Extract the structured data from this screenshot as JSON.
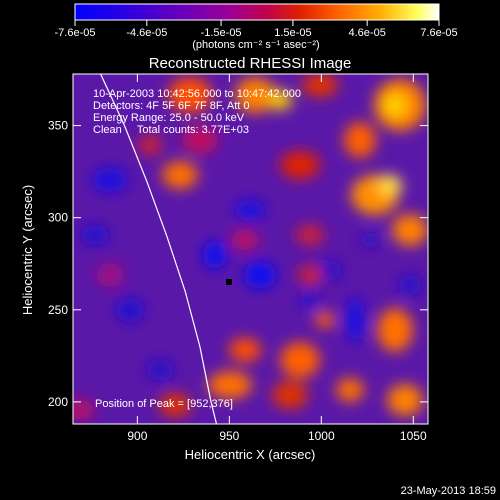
{
  "colorbar": {
    "tick_labels": [
      "-7.6e-05",
      "-4.6e-05",
      "-1.5e-05",
      "1.5e-05",
      "4.6e-05",
      "7.6e-05"
    ],
    "tick_values": [
      -7.6e-05,
      -4.6e-05,
      -1.5e-05,
      1.5e-05,
      4.6e-05,
      7.6e-05
    ],
    "range": [
      -7.6e-05,
      7.6e-05
    ],
    "unit_label": "(photons cm⁻² s⁻¹ asec⁻²)",
    "colormap": [
      "#0000ff",
      "#5000c8",
      "#9000a0",
      "#d00040",
      "#ff4000",
      "#ffa000",
      "#ffff80",
      "#ffffff"
    ]
  },
  "chart_data": {
    "type": "heatmap",
    "title": "Reconstructed RHESSI Image",
    "xlabel": "Heliocentric X (arcsec)",
    "ylabel": "Heliocentric Y (arcsec)",
    "xlim": [
      865,
      1058
    ],
    "ylim": [
      188,
      378
    ],
    "xticks": [
      900,
      950,
      1000,
      1050
    ],
    "yticks": [
      200,
      250,
      300,
      350
    ],
    "annotations": [
      "10-Apr-2003 10:42:56.000 to 10:47:42.000",
      "Detectors: 4F 5F 6F 7F 8F, Att 0",
      "Energy Range: 25.0 - 50.0 keV",
      "Clean     Total counts: 3.77E+03"
    ],
    "peak_label": "Position of Peak = [952,376]",
    "peak_position": [
      952,
      376
    ],
    "limb_line_points": [
      [
        880,
        378
      ],
      [
        893,
        350
      ],
      [
        905,
        320
      ],
      [
        916,
        290
      ],
      [
        926,
        260
      ],
      [
        934,
        230
      ],
      [
        940,
        200
      ],
      [
        943,
        188
      ]
    ],
    "grid": false
  },
  "footer": {
    "date": "23-May-2013 18:59"
  }
}
